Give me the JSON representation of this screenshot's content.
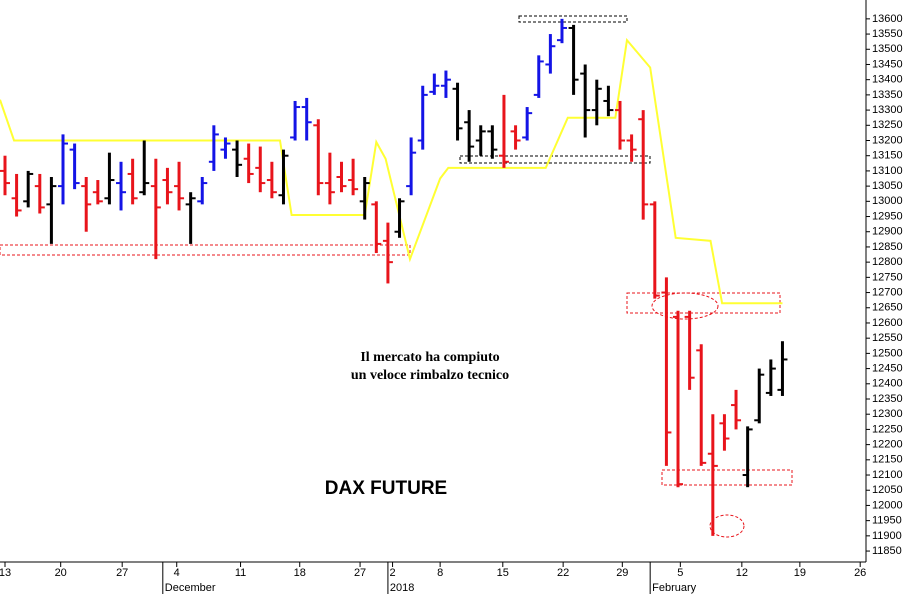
{
  "chart_data": {
    "type": "ohlc",
    "label": "DAX FUTURE",
    "annotation": [
      "Il mercato ha compiuto",
      "un veloce rimbalzo tecnico"
    ],
    "open": [
      13100,
      13010,
      13000,
      13050,
      12990,
      13050,
      13170,
      13050,
      13030,
      13010,
      13060,
      13090,
      13030,
      13050,
      13070,
      13050,
      12990,
      13000,
      13130,
      13170,
      13170,
      13140,
      13110,
      13070,
      13020,
      13210,
      13310,
      13250,
      13060,
      13080,
      13070,
      13000,
      12990,
      12870,
      12900,
      13050,
      13200,
      13360,
      13380,
      13370,
      13260,
      13200,
      13230,
      13150,
      13230,
      13210,
      13350,
      13450,
      13530,
      13570,
      13420,
      13300,
      13330,
      13300,
      13200,
      13270,
      12990,
      12700,
      12620,
      12620,
      12510,
      12170,
      12270,
      12330,
      12100,
      12280,
      12370,
      12380
    ],
    "high": [
      13150,
      13090,
      13100,
      13090,
      13080,
      13220,
      13190,
      13080,
      13070,
      13160,
      13130,
      13140,
      13200,
      13140,
      13110,
      13130,
      13030,
      13080,
      13250,
      13210,
      13200,
      13190,
      13180,
      13130,
      13170,
      13330,
      13340,
      13270,
      13160,
      13130,
      13140,
      13080,
      13000,
      12930,
      13010,
      13210,
      13380,
      13420,
      13430,
      13390,
      13300,
      13250,
      13250,
      13350,
      13250,
      13310,
      13480,
      13550,
      13600,
      13580,
      13450,
      13400,
      13380,
      13330,
      13220,
      13300,
      13000,
      12750,
      12640,
      12640,
      12530,
      12300,
      12300,
      12380,
      12260,
      12450,
      12480,
      12540
    ],
    "low": [
      13020,
      12950,
      12980,
      12960,
      12860,
      12990,
      13040,
      12900,
      12990,
      12990,
      12970,
      12990,
      13020,
      12810,
      12990,
      12970,
      12860,
      12990,
      13100,
      13140,
      13080,
      13060,
      13030,
      13010,
      12990,
      13200,
      13200,
      13020,
      12990,
      13030,
      13020,
      12940,
      12830,
      12730,
      12880,
      13020,
      13170,
      13350,
      13340,
      13200,
      13130,
      13150,
      13140,
      13110,
      13170,
      13200,
      13340,
      13420,
      13520,
      13350,
      13210,
      13250,
      13280,
      13170,
      13130,
      12940,
      12680,
      12130,
      12060,
      12380,
      12130,
      11900,
      12180,
      12250,
      12060,
      12270,
      12360,
      12360
    ],
    "close": [
      13060,
      12970,
      13090,
      12980,
      13050,
      13190,
      13060,
      12990,
      13000,
      13070,
      13030,
      13010,
      13060,
      12980,
      13030,
      13010,
      13010,
      13060,
      13220,
      13190,
      13120,
      13090,
      13060,
      13030,
      13150,
      13310,
      13260,
      13060,
      13030,
      13050,
      13040,
      13060,
      12860,
      12800,
      13000,
      13160,
      13350,
      13380,
      13400,
      13240,
      13180,
      13230,
      13170,
      13130,
      13200,
      13290,
      13460,
      13510,
      13570,
      13400,
      13300,
      13370,
      13300,
      13200,
      13170,
      12990,
      12690,
      12240,
      12070,
      12420,
      12140,
      12130,
      12220,
      12280,
      12250,
      12430,
      12450,
      12480
    ],
    "colors": [
      "#e8141b",
      "#e8141b",
      "#000000",
      "#e8141b",
      "#000000",
      "#1414e6",
      "#1414e6",
      "#e8141b",
      "#e8141b",
      "#000000",
      "#1414e6",
      "#e8141b",
      "#000000",
      "#e8141b",
      "#e8141b",
      "#e8141b",
      "#000000",
      "#1414e6",
      "#1414e6",
      "#1414e6",
      "#000000",
      "#e8141b",
      "#e8141b",
      "#e8141b",
      "#000000",
      "#1414e6",
      "#1414e6",
      "#e8141b",
      "#e8141b",
      "#e8141b",
      "#e8141b",
      "#000000",
      "#e8141b",
      "#e8141b",
      "#000000",
      "#1414e6",
      "#1414e6",
      "#1414e6",
      "#1414e6",
      "#000000",
      "#000000",
      "#000000",
      "#000000",
      "#e8141b",
      "#e8141b",
      "#1414e6",
      "#1414e6",
      "#1414e6",
      "#1414e6",
      "#000000",
      "#000000",
      "#000000",
      "#000000",
      "#e8141b",
      "#e8141b",
      "#e8141b",
      "#e8141b",
      "#e8141b",
      "#e8141b",
      "#e8141b",
      "#e8141b",
      "#e8141b",
      "#e8141b",
      "#e8141b",
      "#000000",
      "#000000",
      "#000000",
      "#000000"
    ],
    "indicator": {
      "color": "#ffff33",
      "x": [
        -0.43,
        0.78,
        23.7,
        24.7,
        31.0,
        32.0,
        32.8,
        34.9,
        37.5,
        38.2,
        46.6,
        48.5,
        52.6,
        53.6,
        55.6,
        57.8,
        60.8,
        61.8,
        67.0
      ],
      "values": [
        13334,
        13200,
        13200,
        12955,
        12955,
        13195,
        13140,
        12810,
        13075,
        13110,
        13110,
        13275,
        13275,
        13530,
        13440,
        12880,
        12870,
        12665,
        12665
      ]
    },
    "xlim": [
      -0.43,
      74.2
    ],
    "ylim": [
      11814,
      13662
    ],
    "xticks": [
      {
        "value": 0,
        "label": "13"
      },
      {
        "value": 4.8,
        "label": "20"
      },
      {
        "value": 10.1,
        "label": "27"
      },
      {
        "value": 14.8,
        "label": "4"
      },
      {
        "value": 20.3,
        "label": "11"
      },
      {
        "value": 25.4,
        "label": "18"
      },
      {
        "value": 30.6,
        "label": "27"
      },
      {
        "value": 33.4,
        "label": "2"
      },
      {
        "value": 37.5,
        "label": "8"
      },
      {
        "value": 42.9,
        "label": "15"
      },
      {
        "value": 48.1,
        "label": "22"
      },
      {
        "value": 53.2,
        "label": "29"
      },
      {
        "value": 58.2,
        "label": "5"
      },
      {
        "value": 63.5,
        "label": "12"
      },
      {
        "value": 68.5,
        "label": "19"
      },
      {
        "value": 73.7,
        "label": "26"
      }
    ],
    "period_ticks": [
      {
        "value": 13.6,
        "label": "December"
      },
      {
        "value": 33.0,
        "label": "2018"
      },
      {
        "value": 55.6,
        "label": "February"
      }
    ],
    "yticks": [
      11850,
      11900,
      11950,
      12000,
      12050,
      12100,
      12150,
      12200,
      12250,
      12300,
      12350,
      12400,
      12450,
      12500,
      12550,
      12600,
      12650,
      12700,
      12750,
      12800,
      12850,
      12900,
      12950,
      13000,
      13050,
      13100,
      13150,
      13200,
      13250,
      13300,
      13350,
      13400,
      13450,
      13500,
      13550,
      13600
    ]
  }
}
